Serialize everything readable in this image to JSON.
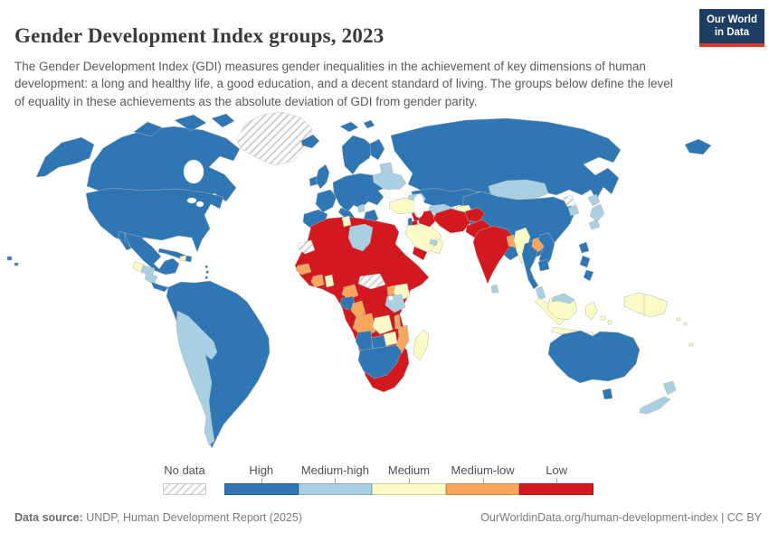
{
  "header": {
    "title": "Gender Development Index groups, 2023",
    "subtitle": "The Gender Development Index (GDI) measures gender inequalities in the achievement of key dimensions of human development: a long and healthy life, a good education, and a decent standard of living. The groups below define the level of equality in these achievements as the absolute deviation of GDI from gender parity.",
    "logo_line1": "Our World",
    "logo_line2": "in Data",
    "logo_bg": "#1d3d63",
    "logo_accent": "#d93b2b"
  },
  "legend": {
    "no_data": {
      "label": "No data",
      "key": "no_data"
    },
    "groups": [
      {
        "label": "High",
        "key": "high"
      },
      {
        "label": "Medium-high",
        "key": "medium_high"
      },
      {
        "label": "Medium",
        "key": "medium"
      },
      {
        "label": "Medium-low",
        "key": "medium_low"
      },
      {
        "label": "Low",
        "key": "low"
      }
    ]
  },
  "footer": {
    "source_label": "Data source:",
    "source_value": " UNDP, Human Development Report (2025)",
    "attribution": "OurWorldinData.org/human-development-index | CC BY"
  },
  "chart_data": {
    "type": "choropleth-world-map",
    "title": "Gender Development Index groups, 2023",
    "legend_categories": [
      "No data",
      "High",
      "Medium-high",
      "Medium",
      "Medium-low",
      "Low"
    ]
  },
  "map": {
    "palette": {
      "high": "#2e77b4",
      "medium_high": "#a9cfe3",
      "medium": "#fbfcc5",
      "medium_low": "#f9a55c",
      "low": "#d2191f",
      "no_data_stripe": "#d4d4d4"
    },
    "countries": {
      "greenland": "no_data",
      "western-sahara": "no_data",
      "south-sudan": "no_data",
      "turkmenistan": "no_data",
      "north-korea": "no_data",
      "alaska": "high",
      "canada": "high",
      "canada-arctic": "high",
      "usa": "high",
      "hawaii": "high",
      "mexico": "high",
      "costa-rica-panama": "high",
      "cuba": "high",
      "dominican-republic": "high",
      "lesser-antilles": "high",
      "south-america": "high",
      "iceland": "high",
      "ireland": "high",
      "uk": "high",
      "scandinavia": "high",
      "svalbard": "high",
      "finland": "high",
      "denmark": "high",
      "france": "high",
      "iberia": "high",
      "europe-central": "high",
      "italy": "high",
      "greece": "high",
      "russia": "high",
      "chukotka": "high",
      "kazakhstan": "high",
      "china": "high",
      "israel": "high",
      "gabon": "high",
      "namibia": "high",
      "botswana": "high",
      "south-africa": "high",
      "thailand": "high",
      "vietnam": "high",
      "cambodia": "high",
      "philippines": "high",
      "australia": "high",
      "tasmania": "high",
      "honduras": "medium_high",
      "nicaragua": "medium_high",
      "peru-bolivia-chile": "medium_high",
      "ukraine": "medium_high",
      "baltic-states": "medium_high",
      "bosnia-albania": "medium_high",
      "caucasus": "medium_high",
      "uzbekistan": "medium_high",
      "mongolia": "medium_high",
      "japan": "medium_high",
      "south-korea": "medium_high",
      "libya": "medium_high",
      "tanzania": "medium_high",
      "uae": "medium_high",
      "sri-lanka": "medium_high",
      "malaysia-peninsula": "medium_high",
      "malaysia-borneo": "medium_high",
      "new-zealand": "medium_high",
      "guatemala": "medium",
      "haiti": "medium",
      "tunisia": "medium",
      "ghana": "medium",
      "kenya": "medium",
      "zambia": "medium",
      "zimbabwe": "medium",
      "madagascar": "medium",
      "saudi-arabia": "medium",
      "oman": "medium",
      "armenia": "medium",
      "turkey": "medium",
      "kyrgyzstan": "medium",
      "myanmar": "medium",
      "sumatra": "medium",
      "java": "medium",
      "borneo-indonesia": "medium",
      "sulawesi": "medium",
      "lesser-sunda": "medium",
      "moluccas": "medium",
      "new-guinea": "medium",
      "pacific-islands": "medium",
      "senegal": "medium_low",
      "ivory-coast": "medium_low",
      "cameroon": "medium_low",
      "congo": "medium_low",
      "uganda": "medium_low",
      "angola": "medium_low",
      "malawi": "medium_low",
      "mozambique": "medium_low",
      "bangladesh": "medium_low",
      "laos": "medium_low",
      "africa-mainland": "low",
      "syria": "low",
      "jordan": "low",
      "iraq": "low",
      "iran": "low",
      "yemen": "low",
      "afghanistan": "low",
      "pakistan": "low",
      "tajikistan": "low",
      "india": "low"
    }
  }
}
